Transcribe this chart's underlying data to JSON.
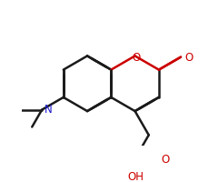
{
  "bg_color": "#ffffff",
  "bond_color": "#1a1a1a",
  "oxygen_color": "#cc0000",
  "nitrogen_color": "#1a1acc",
  "lw": 1.8,
  "dbo": 0.05,
  "s": 0.38,
  "figsize": [
    2.4,
    2.0
  ],
  "dpi": 100,
  "xlim": [
    0.0,
    2.4
  ],
  "ylim": [
    0.0,
    2.0
  ]
}
